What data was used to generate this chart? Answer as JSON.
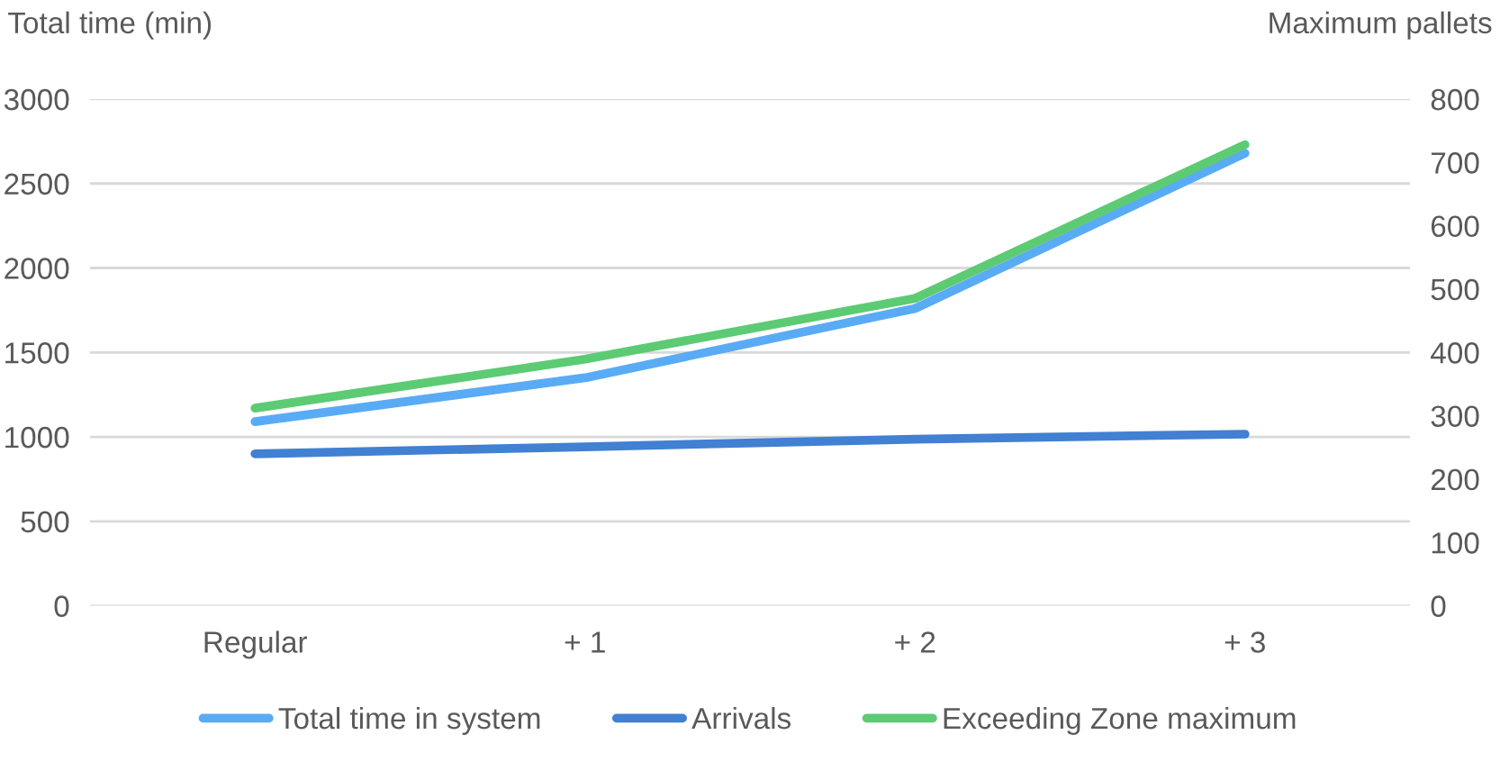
{
  "chart_data": {
    "type": "line",
    "ylabel": "Total time (min)",
    "y2label": "Maximum pallets",
    "categories": [
      "Regular",
      "+ 1",
      "+ 2",
      "+ 3"
    ],
    "series": [
      {
        "name": "Total time in system",
        "color": "#5aabf5",
        "values": [
          1090,
          1350,
          1760,
          2680
        ]
      },
      {
        "name": "Arrivals",
        "color": "#4180d2",
        "values": [
          240,
          251,
          263,
          271
        ],
        "axis": "y2"
      },
      {
        "name": "Exceeding Zone maximum",
        "color": "#5ccb74",
        "values": [
          1170,
          1460,
          1820,
          2730
        ]
      }
    ],
    "ylim": [
      0,
      3000
    ],
    "yticks": [
      0,
      500,
      1000,
      1500,
      2000,
      2500,
      3000
    ],
    "y2lim": [
      0,
      800
    ],
    "y2ticks": [
      0,
      100,
      200,
      300,
      400,
      500,
      600,
      700,
      800
    ],
    "grid": "y",
    "legend": "bottom",
    "marker": "none",
    "line_style": "solid"
  }
}
